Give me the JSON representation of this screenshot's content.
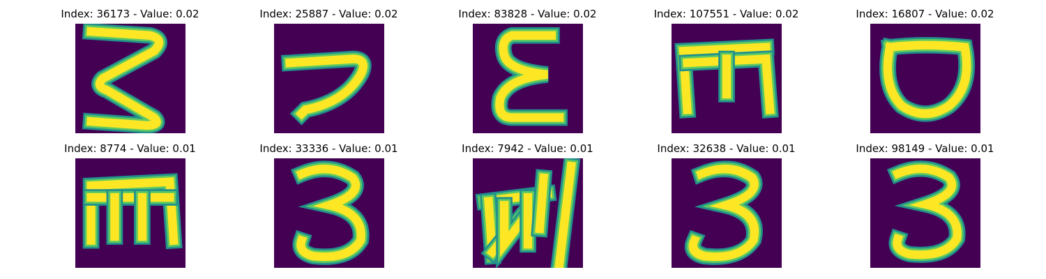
{
  "colors": {
    "background": "#440154",
    "edge": "#21918c",
    "mid": "#5ec962",
    "stroke": "#fde725"
  },
  "panels": [
    {
      "title": "Index: 36173 - Value: 0.02",
      "glyph": "handwritten-three-like-glyph"
    },
    {
      "title": "Index: 25887 - Value: 0.02",
      "glyph": "handwritten-seven-like-glyph"
    },
    {
      "title": "Index: 83828 - Value: 0.02",
      "glyph": "handwritten-epsilon-glyph"
    },
    {
      "title": "Index: 107551 - Value: 0.02",
      "glyph": "handwritten-rotated-e-glyph"
    },
    {
      "title": "Index: 16807 - Value: 0.02",
      "glyph": "handwritten-o-glyph"
    },
    {
      "title": "Index: 8774 - Value: 0.01",
      "glyph": "handwritten-m-glyph"
    },
    {
      "title": "Index: 33336 - Value: 0.01",
      "glyph": "handwritten-three-glyph"
    },
    {
      "title": "Index: 7942 - Value: 0.01",
      "glyph": "handwritten-scribble-glyph"
    },
    {
      "title": "Index: 32638 - Value: 0.01",
      "glyph": "handwritten-three-glyph"
    },
    {
      "title": "Index: 98149 - Value: 0.01",
      "glyph": "handwritten-three-glyph"
    }
  ]
}
